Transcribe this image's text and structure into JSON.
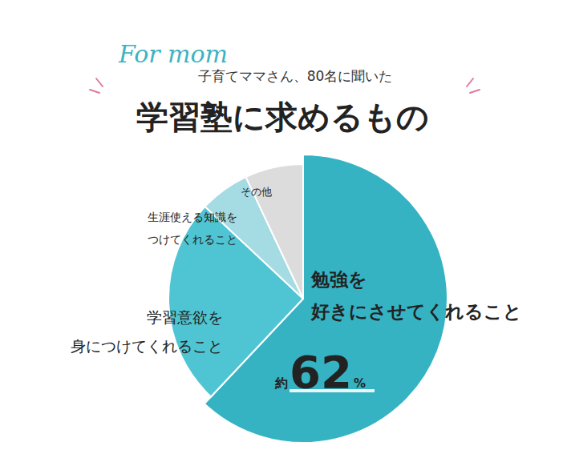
{
  "chart_data": {
    "type": "pie",
    "title": "学習塾に求めるもの",
    "subtitle": "子育てママさん、80名に聞いた",
    "annotations": [
      "For mom"
    ],
    "categories": [
      [
        "勉強を",
        "好きにさせてくれること"
      ],
      [
        "学習意欲を",
        "身につけてくれること"
      ],
      [
        "生涯使える知識を",
        "つけてくれること"
      ],
      [
        "その他"
      ]
    ],
    "values": [
      62,
      25,
      6,
      7
    ],
    "colors": [
      "#35b3c3",
      "#4fc5d3",
      "#a5dbe3",
      "#dcdcdc"
    ],
    "value_labels": [
      "約62%",
      null,
      null,
      null
    ]
  }
}
